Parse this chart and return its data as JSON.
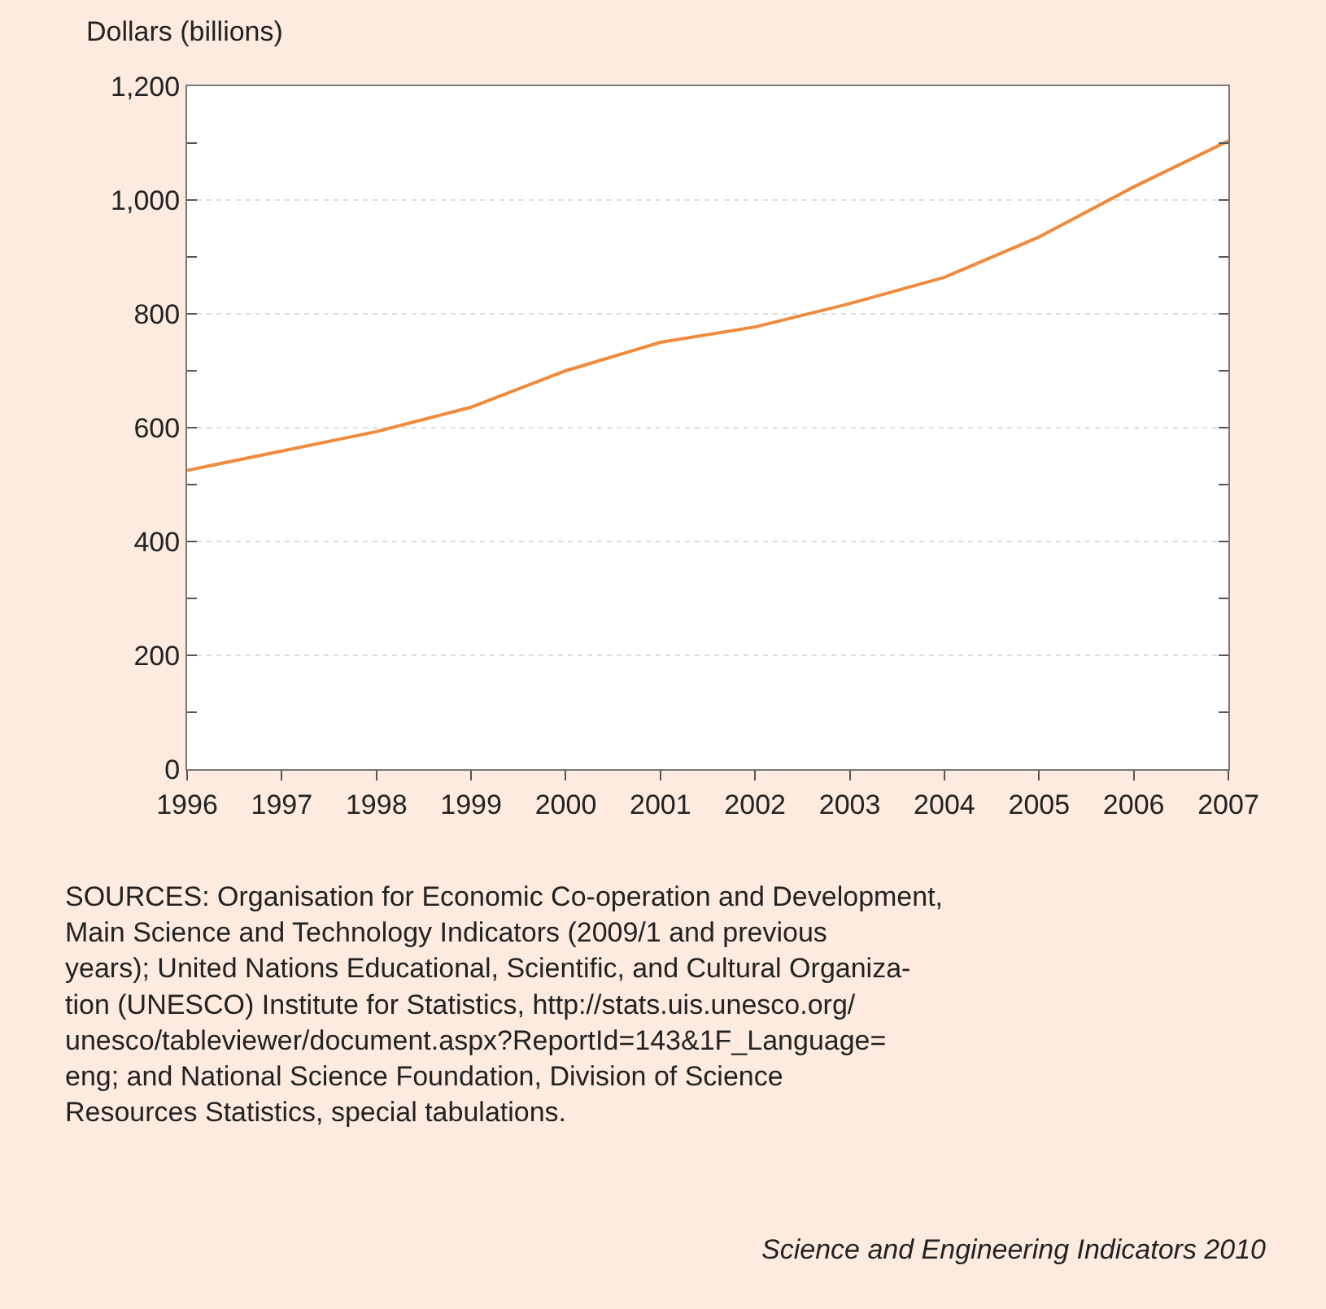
{
  "chart_data": {
    "type": "line",
    "ylabel": "Dollars (billions)",
    "x": [
      1996,
      1997,
      1998,
      1999,
      2000,
      2001,
      2002,
      2003,
      2004,
      2005,
      2006,
      2007
    ],
    "series": [
      {
        "color": "#f08a3c",
        "values": [
          525,
          559,
          593,
          636,
          700,
          750,
          777,
          818,
          864,
          935,
          1023,
          1104
        ]
      }
    ],
    "xlim": [
      1996,
      2007
    ],
    "xticks": [
      1996,
      1997,
      1998,
      1999,
      2000,
      2001,
      2002,
      2003,
      2004,
      2005,
      2006,
      2007
    ],
    "ylim": [
      0,
      1200
    ],
    "yticks": [
      0,
      {
        "value": 100,
        "label": null
      },
      200,
      {
        "value": 300,
        "label": null
      },
      400,
      {
        "value": 500,
        "label": null
      },
      600,
      {
        "value": 700,
        "label": null
      },
      800,
      {
        "value": 900,
        "label": null
      },
      {
        "value": 1000,
        "label": "1,000"
      },
      {
        "value": 1100,
        "label": null
      },
      {
        "value": 1200,
        "label": "1,200"
      }
    ],
    "grid": "y",
    "marker": "none",
    "line_style": "solid",
    "legend": false,
    "annotations": [
      "SOURCES: Organisation for Economic Co-operation and Development,\nMain Science and Technology Indicators (2009/1 and previous\nyears); United Nations Educational, Scientific, and Cultural Organiza-\ntion (UNESCO) Institute for Statistics, http://stats.uis.unesco.org/\nunesco/tableviewer/document.aspx?ReportId=143&1F_Language=\neng; and National Science Foundation, Division of Science\nResources Statistics, special tabulations.",
      "Science and Engineering Indicators 2010"
    ]
  }
}
